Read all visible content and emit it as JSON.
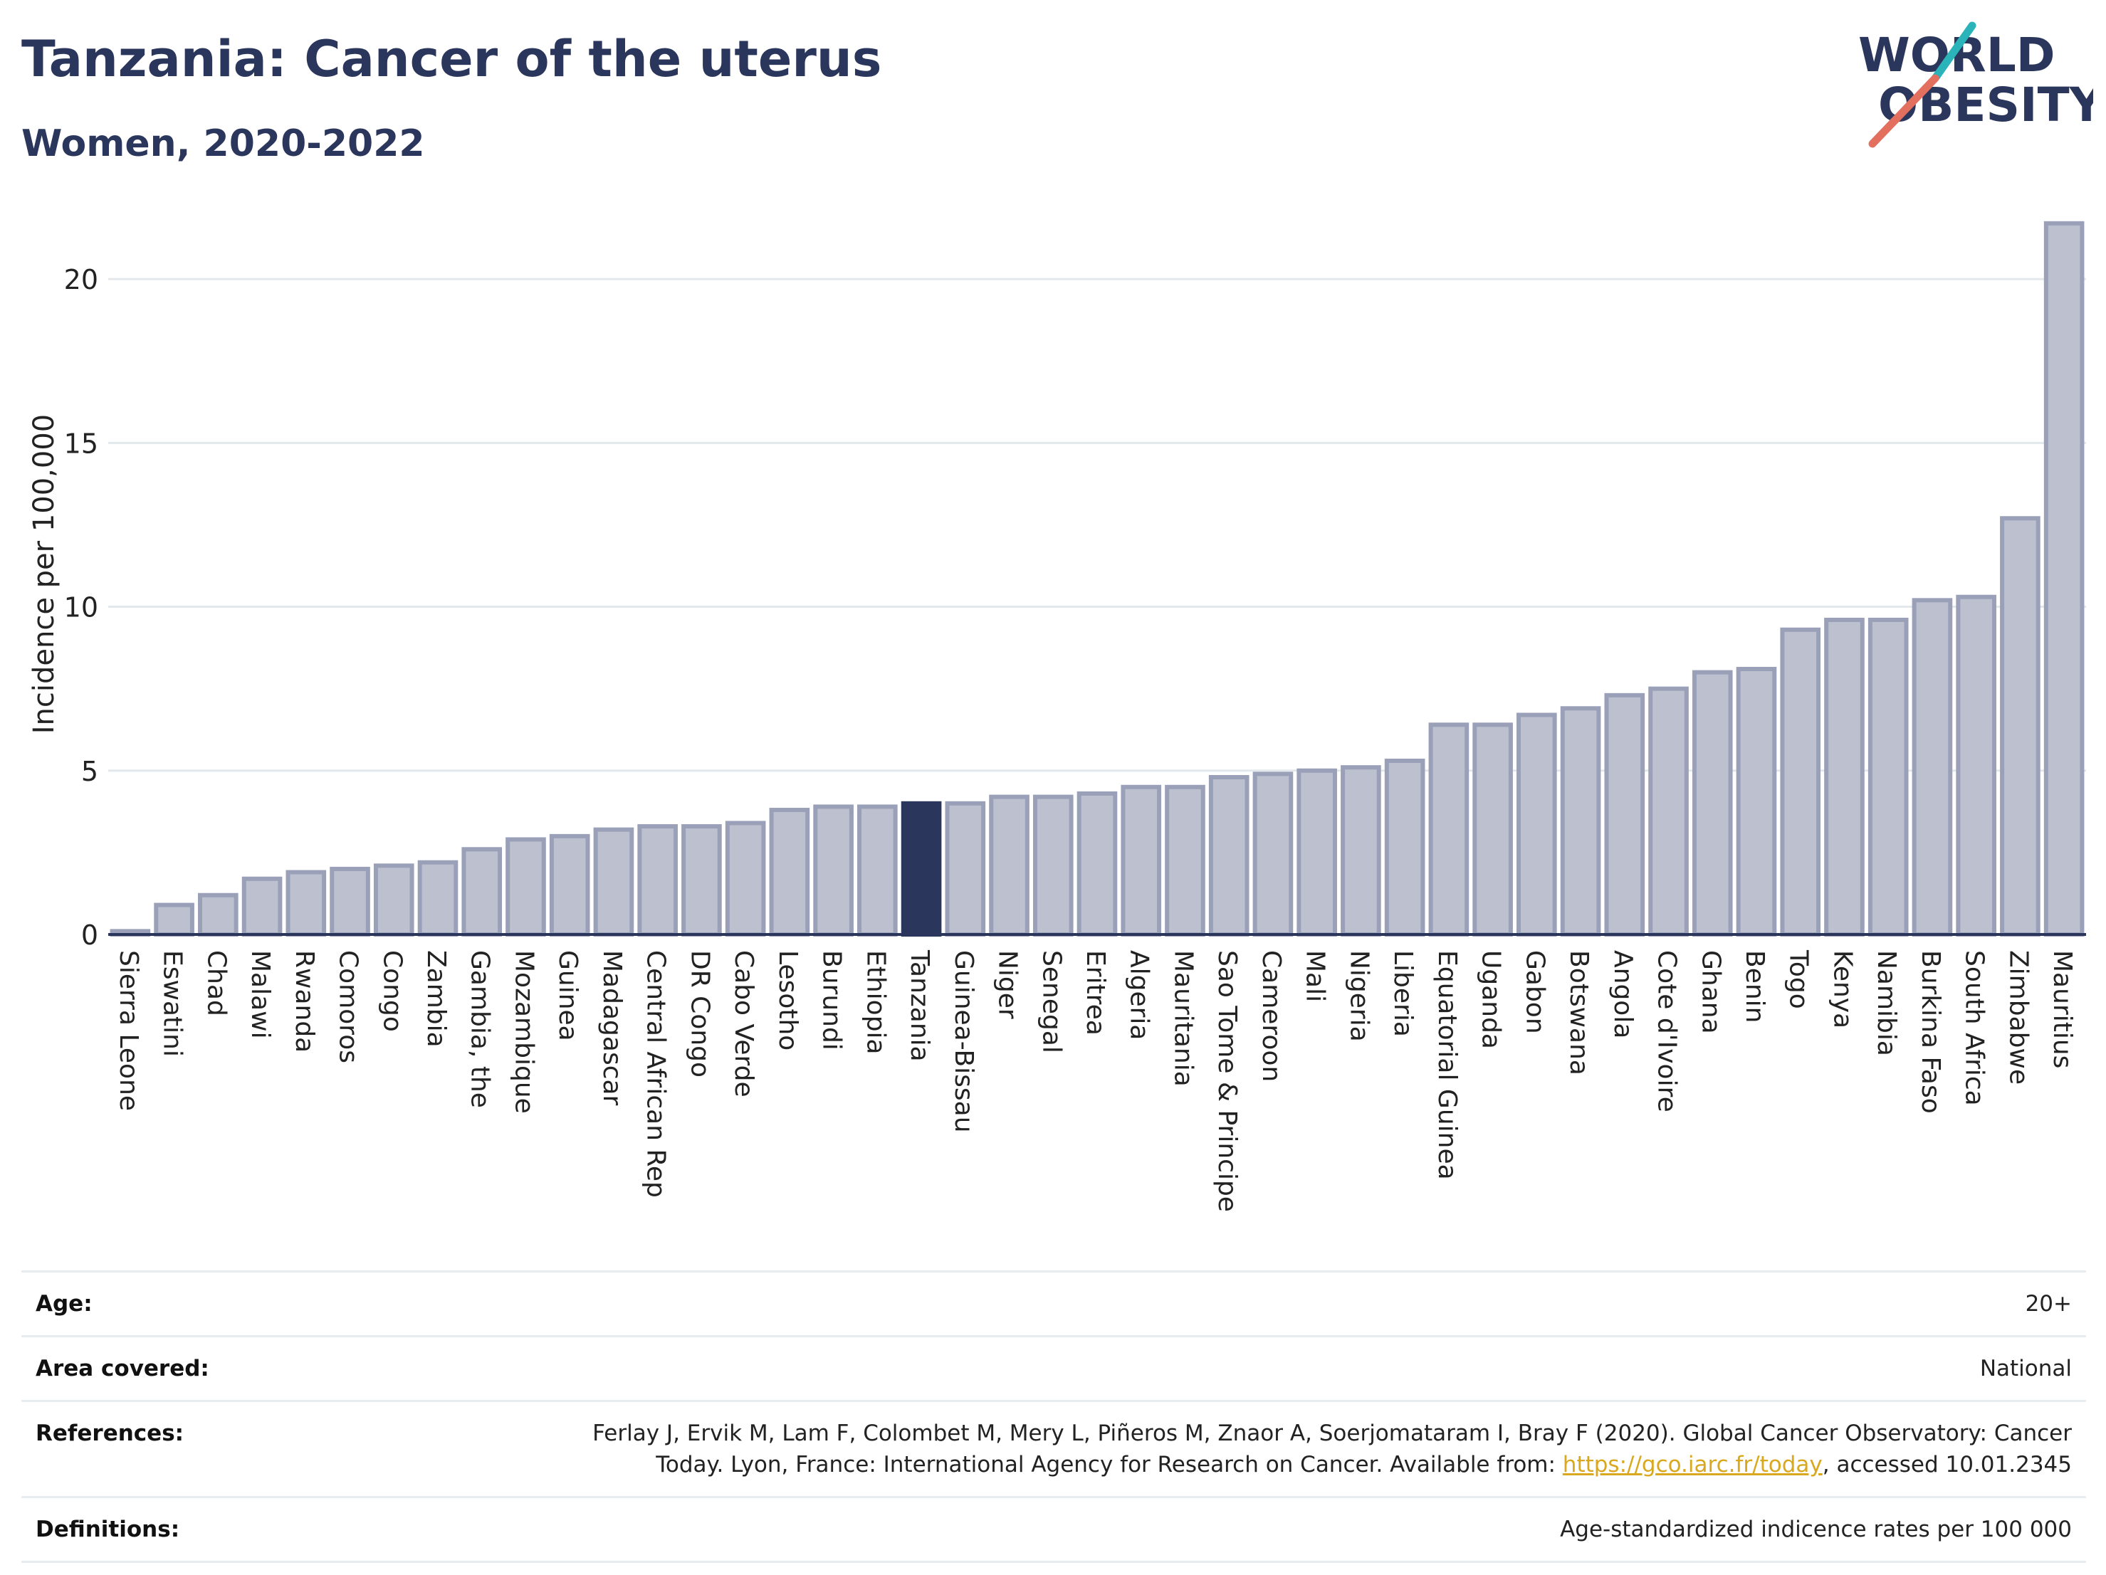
{
  "header": {
    "title": "Tanzania: Cancer of the uterus",
    "subtitle": "Women, 2020-2022",
    "logo_text_line1": "WORLD",
    "logo_text_line2": "OBESITY"
  },
  "colors": {
    "bar": "#bcc0cf",
    "bar_stroke": "#9aa0b8",
    "highlight": "#2b365c",
    "grid": "#e3e8ec",
    "title": "#2b365c",
    "link": "#d9a81f",
    "logo_teal": "#2ab3b8",
    "logo_coral": "#e36f5f"
  },
  "chart_data": {
    "type": "bar",
    "title": "Tanzania: Cancer of the uterus",
    "subtitle": "Women, 2020-2022",
    "ylabel": "Incidence per 100,000",
    "xlabel": "",
    "ylim": [
      0,
      22
    ],
    "yticks": [
      0,
      5,
      10,
      15,
      20
    ],
    "grid": true,
    "highlight": "Tanzania",
    "categories": [
      "Sierra Leone",
      "Eswatini",
      "Chad",
      "Malawi",
      "Rwanda",
      "Comoros",
      "Congo",
      "Zambia",
      "Gambia, the",
      "Mozambique",
      "Guinea",
      "Madagascar",
      "Central African Rep",
      "DR Congo",
      "Cabo Verde",
      "Lesotho",
      "Burundi",
      "Ethiopia",
      "Tanzania",
      "Guinea-Bissau",
      "Niger",
      "Senegal",
      "Eritrea",
      "Algeria",
      "Mauritania",
      "Sao Tome & Principe",
      "Cameroon",
      "Mali",
      "Nigeria",
      "Liberia",
      "Equatorial Guinea",
      "Uganda",
      "Gabon",
      "Botswana",
      "Angola",
      "Cote d'Ivoire",
      "Ghana",
      "Benin",
      "Togo",
      "Kenya",
      "Namibia",
      "Burkina Faso",
      "South Africa",
      "Zimbabwe",
      "Mauritius"
    ],
    "values": [
      0.1,
      0.9,
      1.2,
      1.7,
      1.9,
      2.0,
      2.1,
      2.2,
      2.6,
      2.9,
      3.0,
      3.2,
      3.3,
      3.3,
      3.4,
      3.8,
      3.9,
      3.9,
      4.0,
      4.0,
      4.2,
      4.2,
      4.3,
      4.5,
      4.5,
      4.8,
      4.9,
      5.0,
      5.1,
      5.3,
      6.4,
      6.4,
      6.7,
      6.9,
      7.3,
      7.5,
      8.0,
      8.1,
      9.3,
      9.6,
      9.6,
      10.2,
      10.3,
      12.7,
      21.7
    ]
  },
  "meta": [
    {
      "label": "Age:",
      "value": "20+"
    },
    {
      "label": "Area covered:",
      "value": "National"
    },
    {
      "label": "References:",
      "value_pre": "Ferlay J, Ervik M, Lam F, Colombet M, Mery L, Piñeros M, Znaor A, Soerjomataram I, Bray F (2020). Global Cancer Observatory: Cancer Today. Lyon, France: International Agency for Research on Cancer. Available from: ",
      "link": "https://gco.iarc.fr/today",
      "value_post": ", accessed 10.01.2345"
    },
    {
      "label": "Definitions:",
      "value": "Age-standardized indicence rates per 100 000"
    }
  ]
}
